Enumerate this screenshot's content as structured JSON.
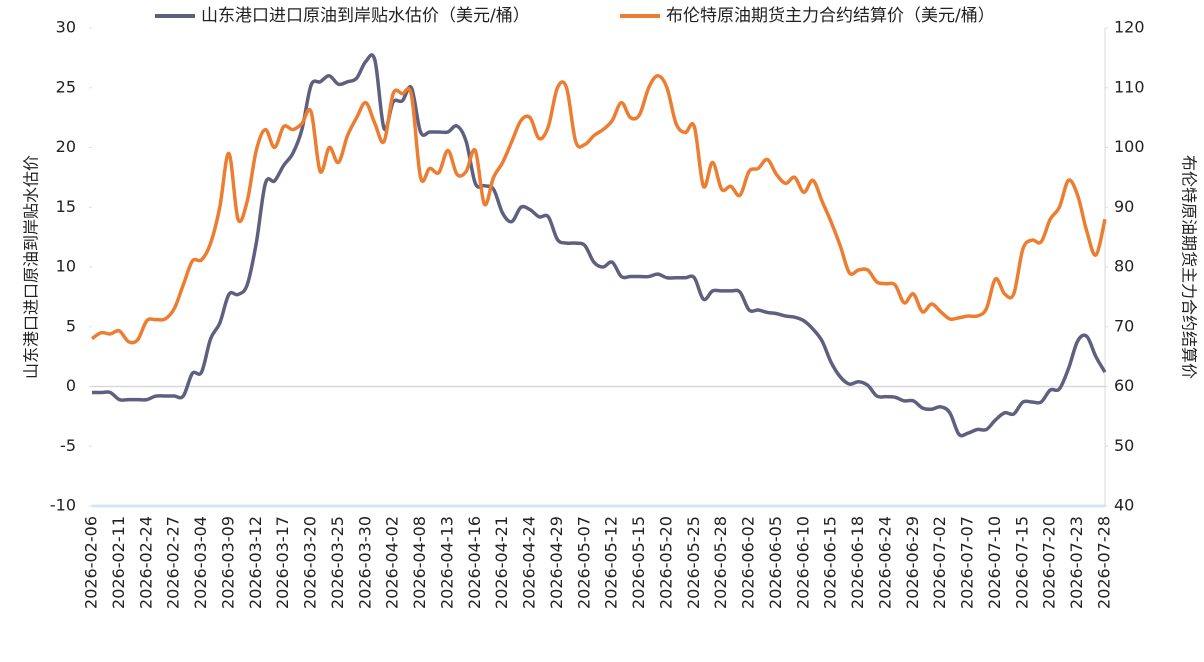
{
  "chart_data": {
    "type": "line",
    "categories": [
      "2026-02-06",
      null,
      null,
      "2026-02-11",
      null,
      null,
      "2026-02-24",
      null,
      null,
      "2026-02-27",
      null,
      null,
      "2026-03-04",
      null,
      null,
      "2026-03-09",
      null,
      null,
      "2026-03-12",
      null,
      null,
      "2026-03-17",
      null,
      null,
      "2026-03-20",
      null,
      null,
      "2026-03-25",
      null,
      null,
      "2026-03-30",
      null,
      null,
      "2026-04-02",
      null,
      null,
      "2026-04-08",
      null,
      null,
      "2026-04-13",
      null,
      null,
      "2026-04-16",
      null,
      null,
      "2026-04-21",
      null,
      null,
      "2026-04-24",
      null,
      null,
      "2026-04-29",
      null,
      null,
      "2026-05-07",
      null,
      null,
      "2026-05-12",
      null,
      null,
      "2026-05-15",
      null,
      null,
      "2026-05-20",
      null,
      null,
      "2026-05-25",
      null,
      null,
      "2026-05-28",
      null,
      null,
      "2026-06-02",
      null,
      null,
      "2026-06-05",
      null,
      null,
      "2026-06-10",
      null,
      null,
      "2026-06-15",
      null,
      null,
      "2026-06-18",
      null,
      null,
      "2026-06-24",
      null,
      null,
      "2026-06-29",
      null,
      null,
      "2026-07-02",
      null,
      null,
      "2026-07-07",
      null,
      null,
      "2026-07-10",
      null,
      null,
      "2026-07-15",
      null,
      null,
      "2026-07-20",
      null,
      null,
      "2026-07-23",
      null,
      null,
      "2026-07-28"
    ],
    "ylabel": "山东港口进口原油到岸贴水估价",
    "y2label": "布伦特原油期货主力合约结算价",
    "ylim": [
      -10,
      30
    ],
    "yticks": [
      -10,
      -5,
      0,
      5,
      10,
      15,
      20,
      25,
      30
    ],
    "y2lim": [
      40,
      120
    ],
    "y2ticks": [
      40,
      50,
      60,
      70,
      80,
      90,
      100,
      110,
      120
    ],
    "zero_line": true,
    "legend": "top",
    "series": [
      {
        "name": "山东港口进口原油到岸贴水估价（美元/桶）",
        "color": "#5f5f80",
        "values": [
          -0.5,
          -0.5,
          -0.5,
          -1.1,
          -1.1,
          -1.1,
          -1.1,
          -0.8,
          -0.8,
          -0.8,
          -0.8,
          1.1,
          1.2,
          4,
          5.3,
          7.7,
          7.7,
          8.5,
          12,
          17,
          17.2,
          18.5,
          19.5,
          21.5,
          25.2,
          25.5,
          26,
          25.3,
          25.5,
          25.8,
          27.2,
          27.3,
          21.6,
          23.8,
          23.9,
          25,
          21.3,
          21.3,
          21.3,
          21.3,
          21.8,
          20.5,
          17,
          16.8,
          16.5,
          14.5,
          13.8,
          15,
          14.8,
          14.2,
          14.2,
          12.3,
          12,
          12,
          11.8,
          10.4,
          10,
          10.4,
          9.2,
          9.2,
          9.2,
          9.2,
          9.4,
          9.1,
          9.1,
          9.1,
          9.1,
          7.3,
          8,
          8,
          8,
          7.9,
          6.4,
          6.4,
          6.2,
          6.1,
          5.9,
          5.8,
          5.5,
          4.8,
          3.8,
          2,
          0.8,
          0.2,
          0.4,
          0.1,
          -0.8,
          -0.85,
          -0.9,
          -1.2,
          -1.2,
          -1.8,
          -1.9,
          -1.7,
          -2.2,
          -4,
          -3.9,
          -3.6,
          -3.6,
          -2.8,
          -2.2,
          -2.3,
          -1.3,
          -1.3,
          -1.3,
          -0.3,
          -0.2,
          1.5,
          3.8,
          4.2,
          2.5,
          1.2
        ]
      },
      {
        "name": "布伦特原油期货主力合约结算价（美元/桶）",
        "color": "#ed7d31",
        "axis": "y2",
        "values": [
          68,
          69,
          68.8,
          69.3,
          67.5,
          67.8,
          71,
          71.2,
          71.3,
          73,
          77,
          81,
          81.2,
          84,
          90,
          99,
          88,
          91,
          99.5,
          103,
          100,
          103.5,
          103,
          104,
          106,
          96,
          100,
          97.5,
          102,
          105,
          107.5,
          104,
          101,
          109,
          109,
          108.8,
          95,
          96.5,
          95.8,
          99.5,
          95.5,
          96,
          99.5,
          90.5,
          95,
          97.5,
          101,
          104.5,
          105,
          101.5,
          103.5,
          110,
          110,
          101,
          100.5,
          102,
          103,
          104.5,
          107.5,
          105,
          105.5,
          110,
          112,
          110,
          104,
          102.5,
          103.5,
          93.5,
          97.5,
          93,
          93.5,
          92,
          96,
          96.5,
          98,
          95.5,
          94,
          95,
          92.5,
          94.5,
          91,
          87.5,
          83.5,
          79,
          79.5,
          79.5,
          77.5,
          77.2,
          77,
          74,
          75.5,
          72.5,
          73.8,
          72.5,
          71.3,
          71.5,
          71.8,
          71.8,
          73,
          78,
          75.5,
          75.5,
          83,
          84.5,
          84.2,
          88,
          90,
          94.5,
          92,
          86,
          82,
          88
        ]
      }
    ]
  }
}
